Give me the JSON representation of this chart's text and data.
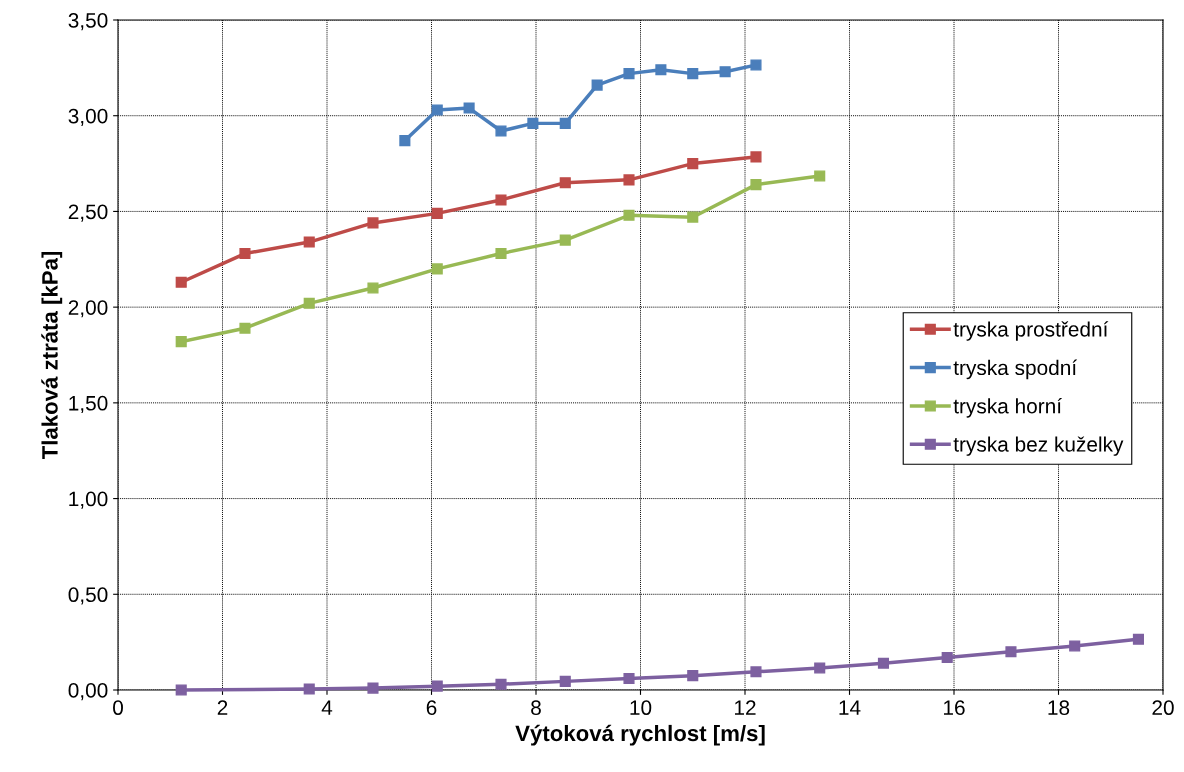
{
  "chart_data": {
    "type": "line",
    "xlabel": "Výtoková rychlost [m/s]",
    "ylabel": "Tlaková ztráta [kPa]",
    "xlim": [
      0,
      20
    ],
    "xticks": [
      0,
      2,
      4,
      6,
      8,
      10,
      12,
      14,
      16,
      18,
      20
    ],
    "ylim": [
      0,
      3.5
    ],
    "yticks": [
      {
        "value": 0,
        "label": "0,00"
      },
      {
        "value": 0.5,
        "label": "0,50"
      },
      {
        "value": 1,
        "label": "1,00"
      },
      {
        "value": 1.5,
        "label": "1,50"
      },
      {
        "value": 2,
        "label": "2,00"
      },
      {
        "value": 2.5,
        "label": "2,50"
      },
      {
        "value": 3,
        "label": "3,00"
      },
      {
        "value": 3.5,
        "label": "3,50"
      }
    ],
    "grid": true,
    "legend": "right",
    "marker": "square",
    "line_style": "solid",
    "series": [
      {
        "name": "tryska prostřední",
        "color": "#be4b48",
        "x": [
          1.21,
          2.43,
          3.66,
          4.88,
          6.11,
          7.33,
          8.56,
          9.78,
          11.0,
          12.21
        ],
        "values": [
          2.13,
          2.28,
          2.34,
          2.44,
          2.49,
          2.56,
          2.65,
          2.665,
          2.75,
          2.785
        ]
      },
      {
        "name": "tryska spodní",
        "color": "#4a7ebb",
        "x": [
          5.49,
          6.11,
          6.72,
          7.33,
          7.94,
          8.56,
          9.17,
          9.78,
          10.39,
          11.0,
          11.62,
          12.21
        ],
        "values": [
          2.87,
          3.03,
          3.04,
          2.92,
          2.96,
          2.96,
          3.16,
          3.22,
          3.24,
          3.22,
          3.23,
          3.265
        ]
      },
      {
        "name": "tryska horní",
        "color": "#98b954",
        "x": [
          1.21,
          2.43,
          3.66,
          4.88,
          6.11,
          7.33,
          8.56,
          9.78,
          11.0,
          12.21,
          13.43
        ],
        "values": [
          1.82,
          1.89,
          2.02,
          2.1,
          2.2,
          2.28,
          2.35,
          2.48,
          2.47,
          2.64,
          2.685
        ]
      },
      {
        "name": "tryska bez kuželky",
        "color": "#7d60a0",
        "x": [
          1.21,
          3.66,
          4.88,
          6.11,
          7.33,
          8.56,
          9.78,
          11.0,
          12.21,
          13.43,
          14.65,
          15.87,
          17.09,
          18.31,
          19.53
        ],
        "values": [
          0.0,
          0.005,
          0.01,
          0.02,
          0.03,
          0.045,
          0.06,
          0.075,
          0.095,
          0.115,
          0.14,
          0.17,
          0.2,
          0.23,
          0.265
        ]
      }
    ]
  }
}
